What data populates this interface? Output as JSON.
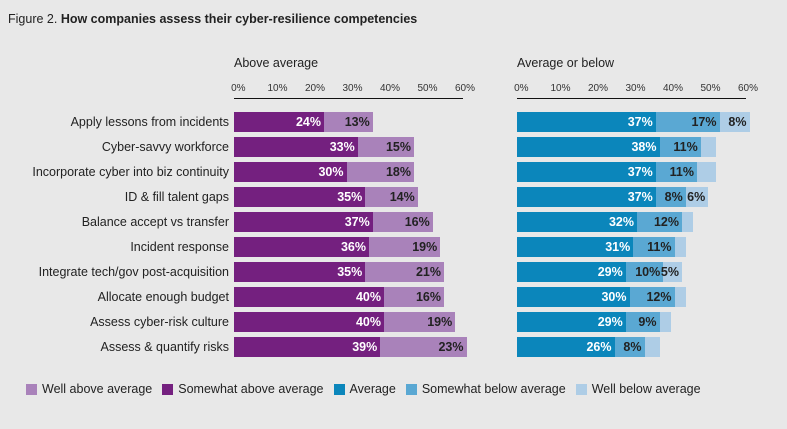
{
  "title": {
    "prefix": "Figure 2.",
    "text": "How companies assess their cyber-resilience competencies"
  },
  "colors": {
    "somewhat_above": "#74207f",
    "well_above": "#a982ba",
    "average": "#0b86bb",
    "somewhat_below": "#5aa8d3",
    "well_below": "#aecde6",
    "label_light": "#ffffff",
    "label_dark": "#222222"
  },
  "legend": [
    {
      "label": "Well above average",
      "color_key": "well_above"
    },
    {
      "label": "Somewhat above average",
      "color_key": "somewhat_above"
    },
    {
      "label": "Average",
      "color_key": "average"
    },
    {
      "label": "Somewhat below average",
      "color_key": "somewhat_below"
    },
    {
      "label": "Well below average",
      "color_key": "well_below"
    }
  ],
  "chart_data": [
    {
      "type": "bar",
      "orientation": "horizontal",
      "stacked": true,
      "title": "Above average",
      "xlim": [
        0,
        60
      ],
      "ticks": [
        "0%",
        "10%",
        "20%",
        "30%",
        "40%",
        "50%",
        "60%"
      ],
      "categories": [
        "Apply lessons from incidents",
        "Cyber-savvy workforce",
        "Incorporate cyber into biz continuity",
        "ID & fill talent gaps",
        "Balance accept vs transfer",
        "Incident response",
        "Integrate tech/gov post-acquisition",
        "Allocate enough budget",
        "Assess cyber-risk culture",
        "Assess & quantify risks"
      ],
      "series": [
        {
          "name": "Somewhat above average",
          "color_key": "somewhat_above",
          "label_color": "label_light",
          "values": [
            24,
            33,
            30,
            35,
            37,
            36,
            35,
            40,
            40,
            39
          ],
          "labels": [
            "24%",
            "33%",
            "30%",
            "35%",
            "37%",
            "36%",
            "35%",
            "40%",
            "40%",
            "39%"
          ]
        },
        {
          "name": "Well above average",
          "color_key": "well_above",
          "label_color": "label_dark",
          "values": [
            13,
            15,
            18,
            14,
            16,
            19,
            21,
            16,
            19,
            23
          ],
          "labels": [
            "13%",
            "15%",
            "18%",
            "14%",
            "16%",
            "19%",
            "21%",
            "16%",
            "19%",
            "23%"
          ]
        }
      ]
    },
    {
      "type": "bar",
      "orientation": "horizontal",
      "stacked": true,
      "title": "Average or below",
      "xlim": [
        0,
        60
      ],
      "ticks": [
        "0%",
        "10%",
        "20%",
        "30%",
        "40%",
        "50%",
        "60%"
      ],
      "categories": [
        "Apply lessons from incidents",
        "Cyber-savvy workforce",
        "Incorporate cyber into biz continuity",
        "ID & fill talent gaps",
        "Balance accept vs transfer",
        "Incident response",
        "Integrate tech/gov post-acquisition",
        "Allocate enough budget",
        "Assess cyber-risk culture",
        "Assess & quantify risks"
      ],
      "series": [
        {
          "name": "Average",
          "color_key": "average",
          "label_color": "label_light",
          "values": [
            37,
            38,
            37,
            37,
            32,
            31,
            29,
            30,
            29,
            26
          ],
          "labels": [
            "37%",
            "38%",
            "37%",
            "37%",
            "32%",
            "31%",
            "29%",
            "30%",
            "29%",
            "26%"
          ]
        },
        {
          "name": "Somewhat below average",
          "color_key": "somewhat_below",
          "label_color": "label_dark",
          "values": [
            17,
            11,
            11,
            8,
            12,
            11,
            10,
            12,
            9,
            8
          ],
          "labels": [
            "17%",
            "11%",
            "11%",
            "8%",
            "12%",
            "11%",
            "10%",
            "12%",
            "9%",
            "8%"
          ]
        },
        {
          "name": "Well below average",
          "color_key": "well_below",
          "label_color": "label_dark",
          "values": [
            8,
            4,
            5,
            6,
            3,
            3,
            5,
            3,
            3,
            4
          ],
          "labels": [
            "8%",
            "",
            "",
            "6%",
            "",
            "",
            "5%",
            "",
            "",
            ""
          ]
        }
      ]
    }
  ]
}
